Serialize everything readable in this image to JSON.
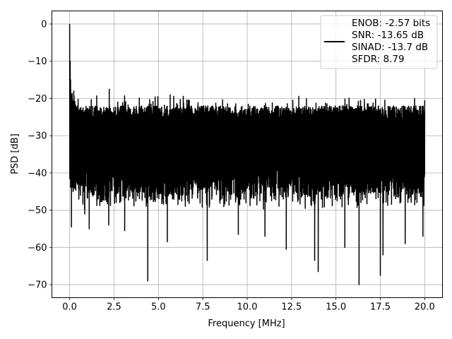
{
  "chart_data": {
    "type": "line",
    "xlabel": "Frequency [MHz]",
    "ylabel": "PSD [dB]",
    "xlim": [
      -1.0,
      21.0
    ],
    "ylim": [
      -73.5,
      3.5
    ],
    "xticks": [
      0.0,
      2.5,
      5.0,
      7.5,
      10.0,
      12.5,
      15.0,
      17.5,
      20.0
    ],
    "xtick_labels": [
      "0.0",
      "2.5",
      "5.0",
      "7.5",
      "10.0",
      "12.5",
      "15.0",
      "17.5",
      "20.0"
    ],
    "yticks": [
      0,
      -10,
      -20,
      -30,
      -40,
      -50,
      -60,
      -70
    ],
    "ytick_labels": [
      "0",
      "−10",
      "−20",
      "−30",
      "−40",
      "−50",
      "−60",
      "−70"
    ],
    "grid": true,
    "legend_position": "top-right",
    "series": [
      {
        "color": "#000000",
        "x_range": [
          0.0,
          20.0
        ],
        "peak": {
          "x": 0.0,
          "y": 0.0
        },
        "noise_band_dB": {
          "top": -22.0,
          "bottom": -44.0
        },
        "notable_points": [
          {
            "x": 0.03,
            "y": -10.0
          },
          {
            "x": 0.05,
            "y": -15.0
          },
          {
            "x": 0.1,
            "y": -54.5
          },
          {
            "x": 0.85,
            "y": -51.0
          },
          {
            "x": 1.1,
            "y": -55.0
          },
          {
            "x": 2.2,
            "y": -54.0
          },
          {
            "x": 2.23,
            "y": -17.5
          },
          {
            "x": 3.1,
            "y": -55.5
          },
          {
            "x": 4.4,
            "y": -69.0
          },
          {
            "x": 4.4,
            "y": -56.5
          },
          {
            "x": 5.5,
            "y": -58.5
          },
          {
            "x": 7.75,
            "y": -63.5
          },
          {
            "x": 9.5,
            "y": -56.5
          },
          {
            "x": 11.0,
            "y": -57.0
          },
          {
            "x": 12.2,
            "y": -60.5
          },
          {
            "x": 13.8,
            "y": -63.5
          },
          {
            "x": 14.0,
            "y": -66.5
          },
          {
            "x": 15.5,
            "y": -60.0
          },
          {
            "x": 16.3,
            "y": -70.0
          },
          {
            "x": 17.5,
            "y": -67.5
          },
          {
            "x": 17.65,
            "y": -62.0
          },
          {
            "x": 18.9,
            "y": -59.0
          },
          {
            "x": 19.9,
            "y": -57.0
          },
          {
            "x": 20.0,
            "y": -20.5
          }
        ]
      }
    ],
    "legend": {
      "lines": [
        "ENOB: -2.57 bits",
        "SNR: -13.65 dB",
        "SINAD: -13.7 dB",
        "SFDR: 8.79"
      ]
    }
  }
}
